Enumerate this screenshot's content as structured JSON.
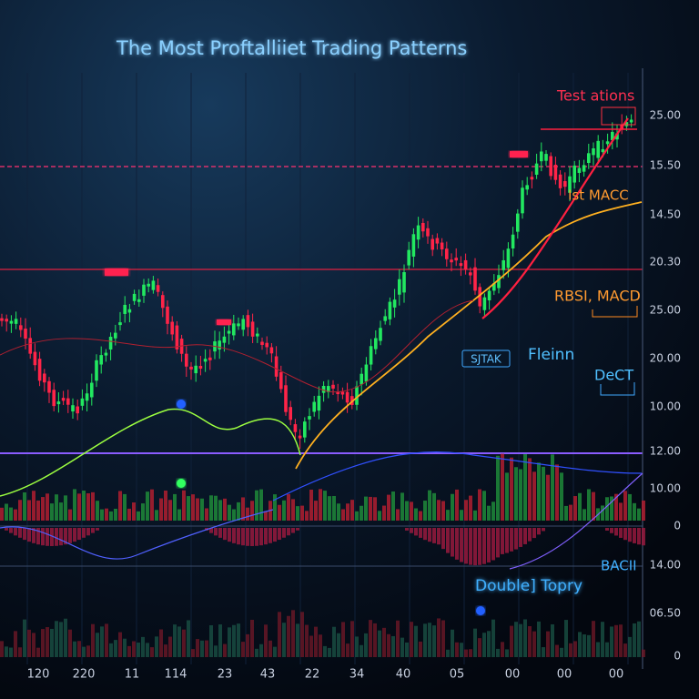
{
  "header": {
    "title": "The Most Proftalliiet Trading Patterns"
  },
  "annotations": [
    "Test ations",
    "Ist MACC",
    "RBSI, MACD",
    "SJTAK",
    "Fleinn",
    "DeCT",
    "Double] Topry",
    "BACII"
  ],
  "y_axis_labels": [
    "25.00",
    "15.50",
    "14.50",
    "20.30",
    "25.00",
    "20.00",
    "10.00",
    "12.00",
    "10.00",
    "0",
    "14.00",
    "06.50",
    "0"
  ],
  "x_axis_labels": [
    "120",
    "220",
    "11",
    "114",
    "23",
    "43",
    "22",
    "34",
    "40",
    "05",
    "00",
    "00",
    "00"
  ]
}
